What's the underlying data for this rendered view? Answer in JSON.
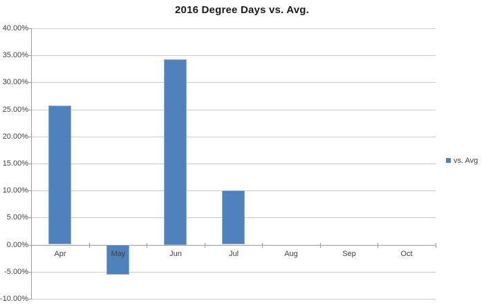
{
  "chart_data": {
    "type": "bar",
    "title": "2016 Degree Days vs. Avg.",
    "categories": [
      "Apr",
      "May",
      "Jun",
      "Jul",
      "Aug",
      "Sep",
      "Oct"
    ],
    "series": [
      {
        "name": "vs. Avg",
        "values_pct": [
          25.7,
          -5.5,
          34.3,
          10.0,
          0,
          0,
          0
        ]
      }
    ],
    "ylim": [
      -10,
      40
    ],
    "yticks": [
      {
        "value": 40,
        "label": "40.00%"
      },
      {
        "value": 35,
        "label": "35.00%"
      },
      {
        "value": 30,
        "label": "30.00%"
      },
      {
        "value": 25,
        "label": "25.00%"
      },
      {
        "value": 20,
        "label": "20.00%"
      },
      {
        "value": 15,
        "label": "15.00%"
      },
      {
        "value": 10,
        "label": "10.00%"
      },
      {
        "value": 5,
        "label": "5.00%"
      },
      {
        "value": 0,
        "label": "0.00%"
      },
      {
        "value": -5,
        "label": "-5.00%"
      },
      {
        "value": -10,
        "label": "-10.00%"
      }
    ],
    "grid": true,
    "legend": {
      "position": "right",
      "entries": [
        {
          "label": "vs. Avg",
          "marker": "square-icon",
          "color": "#4F81BD"
        }
      ]
    },
    "colors": {
      "bar": "#4F81BD",
      "gridline": "#C9C9C9",
      "axis": "#9A9A9A",
      "label_text": "#404040",
      "title_text": "#1A1A1A",
      "background": "#FFFFFF"
    }
  }
}
